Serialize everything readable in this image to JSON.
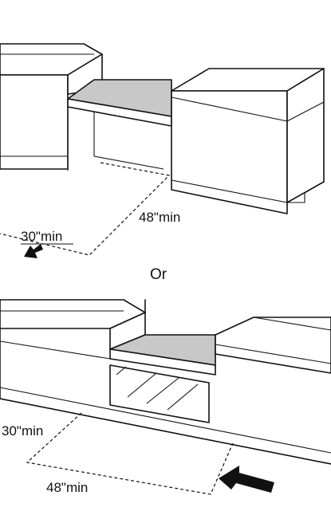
{
  "top_diagram": {
    "depth_label": "30\"min",
    "width_label": "48\"min"
  },
  "separator": {
    "text": "Or"
  },
  "bottom_diagram": {
    "depth_label": "30\"min",
    "width_label": "48\"min"
  },
  "colors": {
    "line": "#111111",
    "seat_fill": "#c8c8c8",
    "background": "#ffffff"
  },
  "icons": {
    "arrow": "approach-arrow-icon"
  }
}
